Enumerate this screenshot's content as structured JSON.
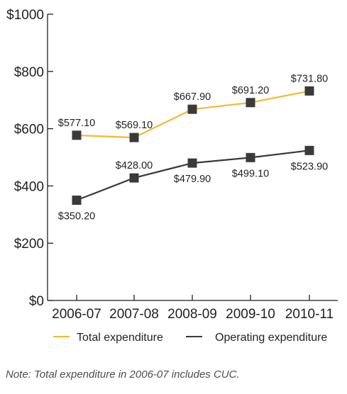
{
  "chart_data": {
    "type": "line",
    "title": "",
    "xlabel": "",
    "ylabel": "",
    "categories": [
      "2006-07",
      "2007-08",
      "2008-09",
      "2009-10",
      "2010-11"
    ],
    "y_ticks": [
      "$0",
      "$200",
      "$400",
      "$600",
      "$800",
      "$1000"
    ],
    "y_tick_values": [
      0,
      200,
      400,
      600,
      800,
      1000
    ],
    "ylim": [
      0,
      1000
    ],
    "grid": false,
    "legend_position": "bottom",
    "series": [
      {
        "name": "Total expenditure",
        "color": "#f5b92e",
        "values": [
          577.1,
          569.1,
          667.9,
          691.2,
          731.8
        ],
        "labels": [
          "$577.10",
          "$569.10",
          "$667.90",
          "$691.20",
          "$731.80"
        ],
        "label_position": "above"
      },
      {
        "name": "Operating expenditure",
        "color": "#3a3a3a",
        "values": [
          350.2,
          428.0,
          479.9,
          499.1,
          523.9
        ],
        "labels": [
          "$350.20",
          "$428.00",
          "$479.90",
          "$499.10",
          "$523.90"
        ],
        "label_position": "mixed"
      }
    ],
    "marker_color": "#3a3a3a",
    "axis_color": "#231f20"
  },
  "note": "Note: Total expenditure in 2006-07 includes CUC."
}
